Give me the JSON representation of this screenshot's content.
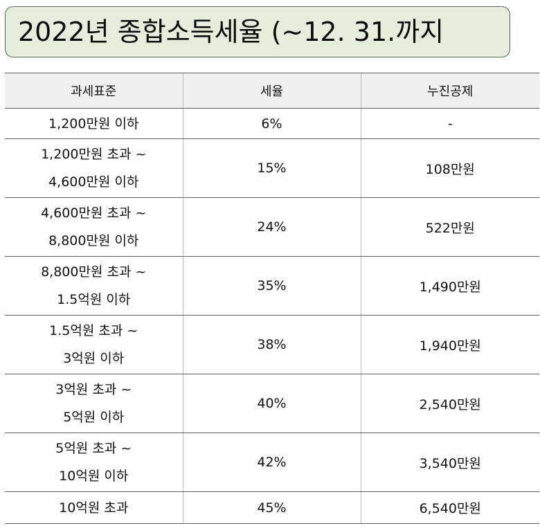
{
  "title": "2022년 종합소득세율 (~12. 31.까지",
  "table": {
    "headers": [
      "과세표준",
      "세율",
      "누진공제"
    ],
    "rows": [
      {
        "bracket": [
          "1,200만원 이하"
        ],
        "rate": "6%",
        "deduction": "-"
      },
      {
        "bracket": [
          "1,200만원 초과 ~",
          "4,600만원 이하"
        ],
        "rate": "15%",
        "deduction": "108만원"
      },
      {
        "bracket": [
          "4,600만원 초과 ~",
          "8,800만원 이하"
        ],
        "rate": "24%",
        "deduction": "522만원"
      },
      {
        "bracket": [
          "8,800만원 초과 ~",
          "1.5억원 이하"
        ],
        "rate": "35%",
        "deduction": "1,490만원"
      },
      {
        "bracket": [
          "1.5억원 초과 ~",
          "3억원 이하"
        ],
        "rate": "38%",
        "deduction": "1,940만원"
      },
      {
        "bracket": [
          "3억원 초과 ~",
          "5억원 이하"
        ],
        "rate": "40%",
        "deduction": "2,540만원"
      },
      {
        "bracket": [
          "5억원 초과 ~",
          "10억원 이하"
        ],
        "rate": "42%",
        "deduction": "3,540만원"
      },
      {
        "bracket": [
          "10억원 초과"
        ],
        "rate": "45%",
        "deduction": "6,540만원"
      }
    ]
  }
}
